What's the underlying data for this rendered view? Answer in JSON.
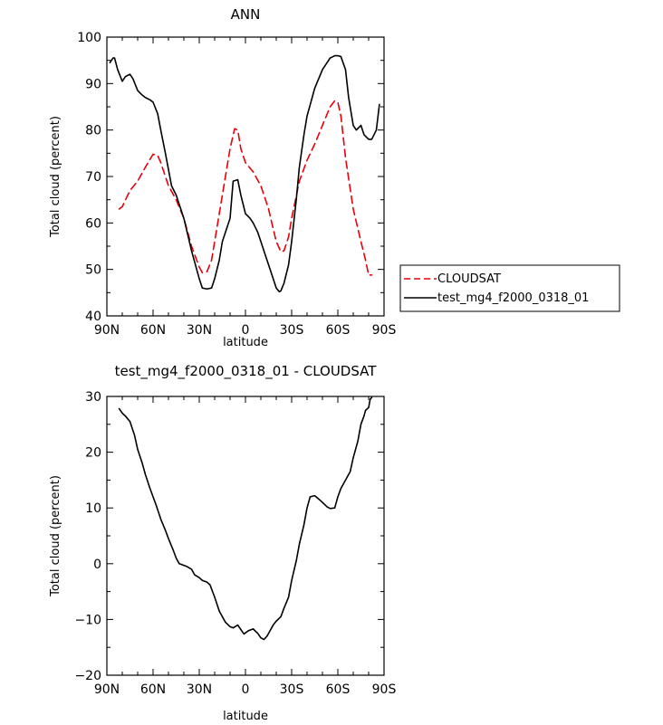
{
  "chart_data": [
    {
      "type": "line",
      "title": "ANN",
      "xlabel": "latitude",
      "ylabel": "Total cloud (percent)",
      "xlim": [
        -90,
        90
      ],
      "ylim": [
        40,
        100
      ],
      "xticks": [
        -90,
        -60,
        -30,
        0,
        30,
        60,
        90
      ],
      "xticklabels": [
        "90N",
        "60N",
        "30N",
        "0",
        "30S",
        "60S",
        "90S"
      ],
      "yticks": [
        40,
        50,
        60,
        70,
        80,
        90,
        100
      ],
      "yticklabels": [
        "40",
        "50",
        "60",
        "70",
        "80",
        "90",
        "100"
      ],
      "grid": false,
      "legend": "right",
      "series": [
        {
          "name": "CLOUDSAT",
          "color": "#e8000b",
          "dash": "dashed",
          "x": [
            -82,
            -80,
            -75,
            -70,
            -65,
            -60,
            -57,
            -55,
            -50,
            -45,
            -40,
            -35,
            -30,
            -28,
            -25,
            -22,
            -20,
            -15,
            -10,
            -7,
            -5,
            -3,
            0,
            5,
            10,
            15,
            20,
            23,
            25,
            28,
            30,
            35,
            40,
            45,
            50,
            55,
            58,
            60,
            62,
            65,
            70,
            75,
            78,
            80,
            82
          ],
          "y": [
            63,
            63.5,
            67,
            69,
            72,
            74.8,
            74.5,
            73,
            68,
            65,
            61,
            55,
            50.5,
            49.3,
            49.5,
            52,
            56,
            66,
            76,
            80.3,
            80,
            76,
            73,
            71,
            68,
            63,
            56,
            53.8,
            54,
            57,
            61,
            69,
            73.5,
            77,
            81,
            85,
            86.3,
            86,
            83,
            74,
            63,
            56,
            52,
            48.8,
            48.8
          ]
        },
        {
          "name": "test_mg4_f2000_0318_01",
          "color": "#000000",
          "dash": "solid",
          "x": [
            -88,
            -86,
            -85,
            -83,
            -80,
            -78,
            -75,
            -73,
            -70,
            -67,
            -65,
            -62,
            -60,
            -57,
            -55,
            -52,
            -48,
            -45,
            -40,
            -35,
            -30,
            -28,
            -25,
            -22,
            -20,
            -17,
            -15,
            -10,
            -8,
            -5,
            -3,
            0,
            3,
            5,
            8,
            10,
            13,
            15,
            18,
            20,
            22,
            23,
            25,
            28,
            30,
            33,
            35,
            38,
            40,
            45,
            50,
            55,
            58,
            60,
            62,
            65,
            67,
            70,
            72,
            75,
            77,
            80,
            82,
            85,
            87
          ],
          "y": [
            94.5,
            95.5,
            95.5,
            93,
            90.5,
            91.5,
            92,
            91,
            88.5,
            87.5,
            87,
            86.5,
            86,
            83.5,
            80,
            75,
            68,
            66,
            61,
            54,
            48,
            46,
            45.8,
            46,
            48,
            52,
            56,
            61,
            69,
            69.3,
            66,
            62,
            61,
            60,
            58,
            56,
            53,
            51,
            48,
            46,
            45.2,
            45.4,
            47,
            51,
            56,
            65,
            72,
            79,
            83,
            89,
            93,
            95.5,
            96,
            96,
            95.8,
            93,
            87,
            81,
            80,
            81,
            79,
            78,
            78,
            80,
            85.5
          ]
        }
      ]
    },
    {
      "type": "line",
      "title": "test_mg4_f2000_0318_01  -  CLOUDSAT",
      "xlabel": "latitude",
      "ylabel": "Total cloud (percent)",
      "xlim": [
        -90,
        90
      ],
      "ylim": [
        -20,
        30
      ],
      "xticks": [
        -90,
        -60,
        -30,
        0,
        30,
        60,
        90
      ],
      "xticklabels": [
        "90N",
        "60N",
        "30N",
        "0",
        "30S",
        "60S",
        "90S"
      ],
      "yticks": [
        -20,
        -10,
        0,
        10,
        20,
        30
      ],
      "yticklabels": [
        "−20",
        "−10",
        "0",
        "10",
        "20",
        "30"
      ],
      "grid": false,
      "series": [
        {
          "color": "#000000",
          "dash": "solid",
          "x": [
            -82,
            -80,
            -78,
            -75,
            -72,
            -70,
            -67,
            -65,
            -62,
            -60,
            -58,
            -55,
            -52,
            -50,
            -47,
            -45,
            -43,
            -40,
            -38,
            -35,
            -33,
            -30,
            -28,
            -25,
            -23,
            -20,
            -17,
            -15,
            -13,
            -10,
            -8,
            -5,
            -3,
            -1,
            2,
            5,
            8,
            10,
            12,
            14,
            16,
            18,
            20,
            23,
            25,
            28,
            30,
            33,
            35,
            38,
            40,
            42,
            45,
            48,
            50,
            53,
            55,
            58,
            60,
            62,
            65,
            68,
            70,
            73,
            75,
            77,
            78,
            80,
            81,
            82
          ],
          "y": [
            27.8,
            27,
            26.5,
            25.5,
            23,
            20.5,
            18,
            16,
            13.5,
            12,
            10.5,
            8,
            6,
            4.5,
            2.5,
            1,
            0,
            -0.3,
            -0.5,
            -1,
            -2,
            -2.5,
            -3,
            -3.3,
            -3.8,
            -6,
            -8.5,
            -9.5,
            -10.5,
            -11.3,
            -11.5,
            -11,
            -11.8,
            -12.6,
            -12,
            -11.7,
            -12.5,
            -13.3,
            -13.6,
            -13,
            -12,
            -11,
            -10.3,
            -9.5,
            -8,
            -6,
            -3,
            0.5,
            3.5,
            7,
            10,
            12,
            12.2,
            11.5,
            11,
            10.2,
            9.9,
            10,
            12,
            13.5,
            15,
            16.5,
            19,
            22,
            25,
            26.5,
            27.5,
            28,
            29.5,
            29.8
          ]
        }
      ]
    }
  ]
}
